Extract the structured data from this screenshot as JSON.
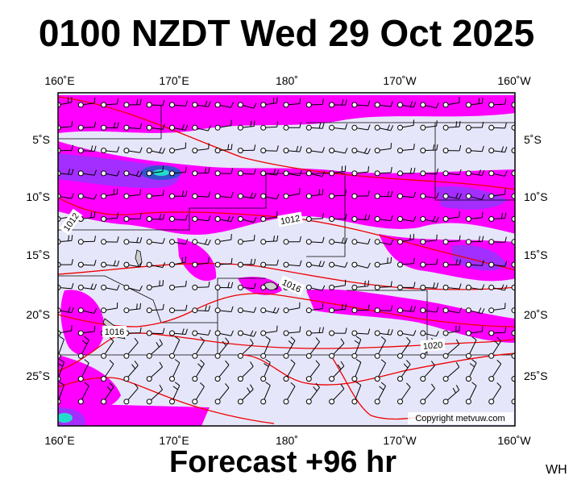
{
  "title": "0100 NZDT Wed 29 Oct 2025",
  "footer": "Forecast +96 hr",
  "corner_code": "WH",
  "copyright": "Copyright metvuw.com",
  "lon_labels": [
    "160˚E",
    "170˚E",
    "180˚",
    "170˚W",
    "160˚W"
  ],
  "lat_labels": [
    "5˚S",
    "10˚S",
    "15˚S",
    "20˚S",
    "25˚S"
  ],
  "isobar_labels": [
    "1012",
    "1012",
    "1016",
    "1016",
    "1020"
  ],
  "colors": {
    "ocean": "#e6e6fa",
    "rain_light": "#ff00ff",
    "rain_medium": "#9933ff",
    "rain_heavy": "#4444dd",
    "rain_extreme": "#22ddcc",
    "isobar": "#ee0000",
    "frame": "#000000"
  }
}
